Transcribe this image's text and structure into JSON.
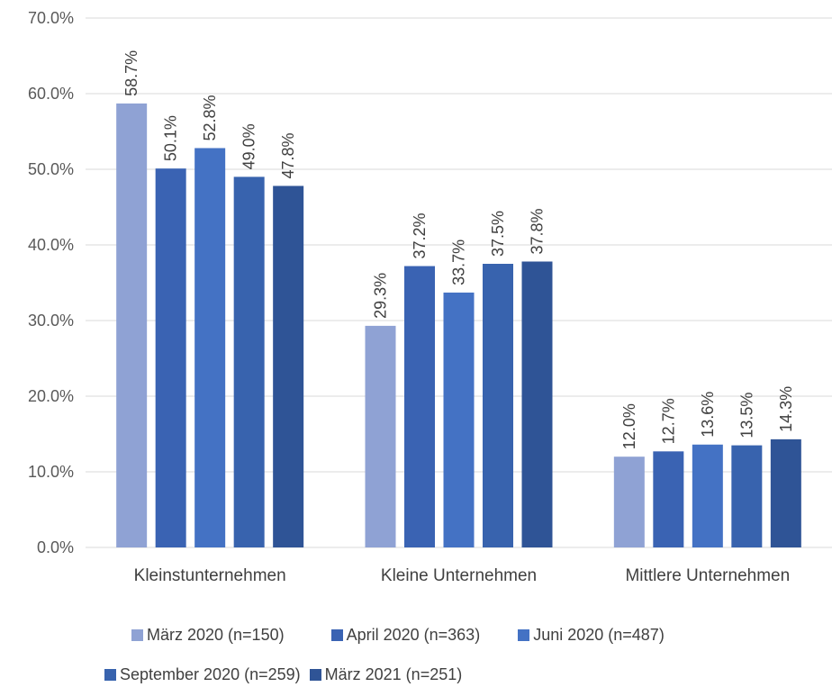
{
  "chart_data": {
    "type": "bar",
    "categories": [
      "Kleinstunternehmen",
      "Kleine Unternehmen",
      "Mittlere Unternehmen"
    ],
    "series": [
      {
        "name": "März 2020 (n=150)",
        "color": "#8FA2D4",
        "values": [
          58.7,
          29.3,
          12.0
        ],
        "labels": [
          "58.7%",
          "29.3%",
          "12.0%"
        ]
      },
      {
        "name": "April 2020 (n=363)",
        "color": "#3A63B3",
        "values": [
          50.1,
          37.2,
          12.7
        ],
        "labels": [
          "50.1%",
          "37.2%",
          "12.7%"
        ]
      },
      {
        "name": "Juni 2020 (n=487)",
        "color": "#4472C4",
        "values": [
          52.8,
          33.7,
          13.6
        ],
        "labels": [
          "52.8%",
          "33.7%",
          "13.6%"
        ]
      },
      {
        "name": "September 2020 (n=259)",
        "color": "#3863AE",
        "values": [
          49.0,
          37.5,
          13.5
        ],
        "labels": [
          "49.0%",
          "37.5%",
          "13.5%"
        ]
      },
      {
        "name": "März 2021 (n=251)",
        "color": "#2F5496",
        "values": [
          47.8,
          37.8,
          14.3
        ],
        "labels": [
          "47.8%",
          "37.8%",
          "14.3%"
        ]
      }
    ],
    "ylim": [
      0,
      70
    ],
    "yticks": [
      0,
      10,
      20,
      30,
      40,
      50,
      60,
      70
    ],
    "ytick_labels": [
      "0.0%",
      "10.0%",
      "20.0%",
      "30.0%",
      "40.0%",
      "50.0%",
      "60.0%",
      "70.0%"
    ],
    "grid": true,
    "legend_position": "bottom",
    "xlabel": "",
    "ylabel": ""
  }
}
